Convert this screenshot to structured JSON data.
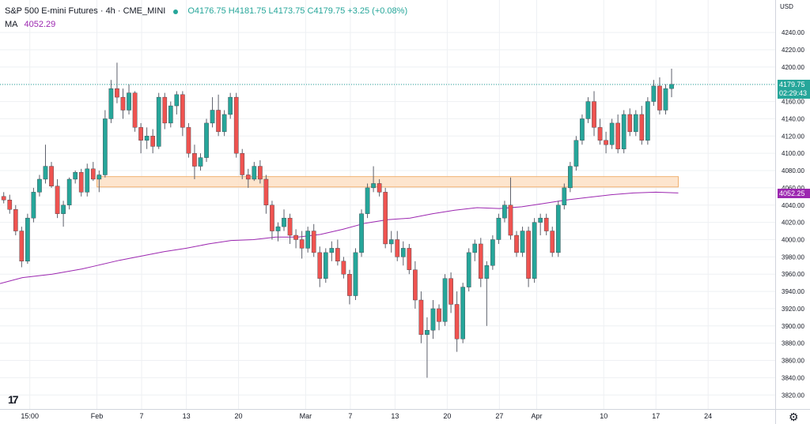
{
  "legend": {
    "symbol": "S&P 500 E-mini Futures · 4h · CME_MINI",
    "open": "O4176.75",
    "high": "H4181.75",
    "low": "L4173.75",
    "close": "C4179.75",
    "change": "+3.25 (+0.08%)",
    "ma_name": "MA",
    "ma_value": "4052.29"
  },
  "price_scale": {
    "currency": "USD",
    "current_price": "4179.75",
    "countdown": "02:29:43",
    "ma_label": "4052.25"
  },
  "colors": {
    "up": "#26a69a",
    "down": "#ef5350",
    "ma": "#9c27b0",
    "zone_fill": "#fde0c5",
    "zone_border": "#f0b070",
    "grid": "#eef0f3"
  },
  "chart_data": {
    "type": "candlestick",
    "series": [
      {
        "name": "S&P 500 E-mini Futures"
      },
      {
        "name": "MA"
      }
    ],
    "y_ticks": [
      3820,
      3840,
      3860,
      3880,
      3900,
      3920,
      3940,
      3960,
      3980,
      4000,
      4020,
      4040,
      4060,
      4080,
      4100,
      4120,
      4140,
      4160,
      4180,
      4200,
      4220,
      4240
    ],
    "y_tick_labels": [
      "3820.00",
      "3840.00",
      "3860.00",
      "3880.00",
      "3900.00",
      "3920.00",
      "3940.00",
      "3960.00",
      "3980.00",
      "4000.00",
      "4020.00",
      "4040.00",
      "4060.00",
      "4080.00",
      "4100.00",
      "4120.00",
      "4140.00",
      "4160.00",
      "4180.00",
      "4200.00",
      "4220.00",
      "4240.00"
    ],
    "ylim": [
      3812,
      4252
    ],
    "x_ticks": [
      {
        "label": "15:00",
        "day": -9
      },
      {
        "label": "Feb",
        "day": 0
      },
      {
        "label": "7",
        "day": 6
      },
      {
        "label": "13",
        "day": 12
      },
      {
        "label": "20",
        "day": 19
      },
      {
        "label": "Mar",
        "day": 28
      },
      {
        "label": "7",
        "day": 34
      },
      {
        "label": "13",
        "day": 40
      },
      {
        "label": "20",
        "day": 47
      },
      {
        "label": "27",
        "day": 54
      },
      {
        "label": "Apr",
        "day": 59
      },
      {
        "label": "10",
        "day": 68
      },
      {
        "label": "17",
        "day": 75
      },
      {
        "label": "24",
        "day": 82
      }
    ],
    "xlim": [
      -13,
      91
    ],
    "current_price": 4179.75,
    "support_zone": {
      "from_day": 0,
      "to_day": 78,
      "low": 4061,
      "high": 4073
    },
    "ma": [
      [
        -13,
        3949
      ],
      [
        -10,
        3956
      ],
      [
        -6,
        3960
      ],
      [
        -2,
        3966
      ],
      [
        0,
        3970
      ],
      [
        3,
        3976
      ],
      [
        6,
        3981
      ],
      [
        9,
        3986
      ],
      [
        12,
        3990
      ],
      [
        15,
        3995
      ],
      [
        18,
        3999
      ],
      [
        21,
        4000
      ],
      [
        24,
        4003
      ],
      [
        27,
        4003
      ],
      [
        30,
        4006
      ],
      [
        33,
        4012
      ],
      [
        36,
        4019
      ],
      [
        39,
        4023
      ],
      [
        42,
        4025
      ],
      [
        45,
        4030
      ],
      [
        48,
        4034
      ],
      [
        51,
        4037
      ],
      [
        54,
        4036
      ],
      [
        57,
        4038
      ],
      [
        60,
        4042
      ],
      [
        63,
        4046
      ],
      [
        66,
        4049
      ],
      [
        69,
        4052
      ],
      [
        72,
        4054
      ],
      [
        75,
        4055
      ],
      [
        78,
        4054
      ]
    ],
    "candles": [
      [
        -12.5,
        4050,
        4055,
        4042,
        4046
      ],
      [
        -11.7,
        4046,
        4052,
        4030,
        4035
      ],
      [
        -10.9,
        4035,
        4040,
        4005,
        4010
      ],
      [
        -10.1,
        4010,
        4015,
        3968,
        3975
      ],
      [
        -9.3,
        3975,
        4030,
        3972,
        4025
      ],
      [
        -8.5,
        4025,
        4060,
        4020,
        4055
      ],
      [
        -7.7,
        4055,
        4075,
        4050,
        4070
      ],
      [
        -6.9,
        4070,
        4110,
        4065,
        4085
      ],
      [
        -6.1,
        4085,
        4090,
        4060,
        4062
      ],
      [
        -5.3,
        4062,
        4070,
        4025,
        4030
      ],
      [
        -4.5,
        4030,
        4045,
        4015,
        4040
      ],
      [
        -3.7,
        4040,
        4072,
        4035,
        4070
      ],
      [
        -2.9,
        4070,
        4080,
        4065,
        4078
      ],
      [
        -2.1,
        4078,
        4082,
        4050,
        4055
      ],
      [
        -1.3,
        4055,
        4088,
        4050,
        4082
      ],
      [
        -0.5,
        4082,
        4090,
        4068,
        4070
      ],
      [
        0.3,
        4070,
        4080,
        4055,
        4075
      ],
      [
        1.1,
        4075,
        4150,
        4072,
        4140
      ],
      [
        1.9,
        4140,
        4185,
        4135,
        4175
      ],
      [
        2.7,
        4175,
        4205,
        4158,
        4165
      ],
      [
        3.5,
        4165,
        4175,
        4140,
        4150
      ],
      [
        4.3,
        4150,
        4180,
        4145,
        4170
      ],
      [
        5.1,
        4170,
        4172,
        4125,
        4130
      ],
      [
        5.9,
        4130,
        4135,
        4100,
        4115
      ],
      [
        6.7,
        4115,
        4130,
        4105,
        4120
      ],
      [
        7.5,
        4120,
        4128,
        4100,
        4108
      ],
      [
        8.3,
        4108,
        4170,
        4105,
        4165
      ],
      [
        9.1,
        4165,
        4170,
        4128,
        4135
      ],
      [
        9.9,
        4135,
        4160,
        4130,
        4155
      ],
      [
        10.7,
        4155,
        4172,
        4145,
        4168
      ],
      [
        11.5,
        4168,
        4172,
        4120,
        4130
      ],
      [
        12.3,
        4130,
        4135,
        4095,
        4100
      ],
      [
        13.1,
        4100,
        4110,
        4070,
        4085
      ],
      [
        13.9,
        4085,
        4100,
        4080,
        4095
      ],
      [
        14.7,
        4095,
        4140,
        4090,
        4135
      ],
      [
        15.5,
        4135,
        4165,
        4130,
        4150
      ],
      [
        16.3,
        4150,
        4168,
        4120,
        4125
      ],
      [
        17.1,
        4125,
        4150,
        4120,
        4145
      ],
      [
        17.9,
        4145,
        4170,
        4140,
        4165
      ],
      [
        18.7,
        4165,
        4170,
        4095,
        4100
      ],
      [
        19.5,
        4100,
        4105,
        4070,
        4075
      ],
      [
        20.3,
        4075,
        4082,
        4060,
        4070
      ],
      [
        21.1,
        4070,
        4090,
        4068,
        4085
      ],
      [
        21.9,
        4085,
        4092,
        4065,
        4070
      ],
      [
        22.7,
        4070,
        4075,
        4030,
        4040
      ],
      [
        23.5,
        4040,
        4045,
        4000,
        4010
      ],
      [
        24.3,
        4010,
        4020,
        3998,
        4015
      ],
      [
        25.1,
        4015,
        4035,
        4010,
        4025
      ],
      [
        25.9,
        4025,
        4030,
        3995,
        4005
      ],
      [
        26.7,
        4005,
        4012,
        3990,
        4000
      ],
      [
        27.5,
        4000,
        4010,
        3978,
        3990
      ],
      [
        28.3,
        3990,
        4015,
        3985,
        4010
      ],
      [
        29.1,
        4010,
        4018,
        3980,
        3985
      ],
      [
        29.9,
        3985,
        3992,
        3945,
        3955
      ],
      [
        30.7,
        3955,
        3990,
        3950,
        3985
      ],
      [
        31.5,
        3985,
        3998,
        3975,
        3990
      ],
      [
        32.3,
        3990,
        4000,
        3970,
        3975
      ],
      [
        33.1,
        3975,
        3980,
        3955,
        3960
      ],
      [
        33.9,
        3960,
        3965,
        3925,
        3935
      ],
      [
        34.7,
        3935,
        3990,
        3930,
        3985
      ],
      [
        35.5,
        3985,
        4035,
        3980,
        4030
      ],
      [
        36.3,
        4030,
        4065,
        4025,
        4060
      ],
      [
        37.1,
        4060,
        4085,
        4055,
        4065
      ],
      [
        37.9,
        4065,
        4070,
        4050,
        4055
      ],
      [
        38.7,
        4055,
        4060,
        3990,
        3995
      ],
      [
        39.5,
        3995,
        4010,
        3985,
        4000
      ],
      [
        40.3,
        4000,
        4010,
        3975,
        3980
      ],
      [
        41.1,
        3980,
        3998,
        3970,
        3990
      ],
      [
        41.9,
        3990,
        3995,
        3960,
        3965
      ],
      [
        42.7,
        3965,
        3975,
        3920,
        3930
      ],
      [
        43.5,
        3930,
        3940,
        3880,
        3890
      ],
      [
        44.3,
        3890,
        3910,
        3840,
        3895
      ],
      [
        45.1,
        3895,
        3930,
        3885,
        3920
      ],
      [
        45.9,
        3920,
        3925,
        3895,
        3905
      ],
      [
        46.7,
        3905,
        3960,
        3900,
        3955
      ],
      [
        47.5,
        3955,
        3962,
        3915,
        3925
      ],
      [
        48.3,
        3925,
        3940,
        3870,
        3885
      ],
      [
        49.1,
        3885,
        3950,
        3880,
        3945
      ],
      [
        49.9,
        3945,
        3990,
        3940,
        3985
      ],
      [
        50.7,
        3985,
        4000,
        3975,
        3995
      ],
      [
        51.5,
        3995,
        4002,
        3945,
        3955
      ],
      [
        52.3,
        3955,
        3975,
        3900,
        3970
      ],
      [
        53.1,
        3970,
        4005,
        3965,
        4000
      ],
      [
        53.9,
        4000,
        4030,
        3995,
        4025
      ],
      [
        54.7,
        4025,
        4045,
        4020,
        4040
      ],
      [
        55.5,
        4040,
        4072,
        4000,
        4005
      ],
      [
        56.3,
        4005,
        4010,
        3980,
        3985
      ],
      [
        57.1,
        3985,
        4015,
        3980,
        4010
      ],
      [
        57.9,
        4010,
        4015,
        3945,
        3955
      ],
      [
        58.7,
        3955,
        4025,
        3950,
        4020
      ],
      [
        59.5,
        4020,
        4030,
        4005,
        4025
      ],
      [
        60.3,
        4025,
        4030,
        4005,
        4010
      ],
      [
        61.1,
        4010,
        4015,
        3980,
        3985
      ],
      [
        61.9,
        3985,
        4045,
        3980,
        4040
      ],
      [
        62.7,
        4040,
        4065,
        4035,
        4060
      ],
      [
        63.5,
        4060,
        4090,
        4055,
        4085
      ],
      [
        64.3,
        4085,
        4120,
        4080,
        4115
      ],
      [
        65.1,
        4115,
        4145,
        4110,
        4140
      ],
      [
        65.9,
        4140,
        4165,
        4135,
        4160
      ],
      [
        66.7,
        4160,
        4172,
        4120,
        4130
      ],
      [
        67.5,
        4130,
        4140,
        4110,
        4115
      ],
      [
        68.3,
        4115,
        4125,
        4100,
        4110
      ],
      [
        69.1,
        4110,
        4140,
        4105,
        4135
      ],
      [
        69.9,
        4135,
        4145,
        4100,
        4105
      ],
      [
        70.7,
        4105,
        4150,
        4100,
        4145
      ],
      [
        71.5,
        4145,
        4152,
        4120,
        4125
      ],
      [
        72.3,
        4125,
        4150,
        4120,
        4145
      ],
      [
        73.1,
        4145,
        4155,
        4110,
        4115
      ],
      [
        73.9,
        4115,
        4165,
        4110,
        4160
      ],
      [
        74.7,
        4160,
        4185,
        4155,
        4178
      ],
      [
        75.5,
        4178,
        4188,
        4145,
        4150
      ],
      [
        76.3,
        4150,
        4180,
        4145,
        4175
      ],
      [
        77.1,
        4175,
        4198,
        4165,
        4180
      ]
    ]
  }
}
